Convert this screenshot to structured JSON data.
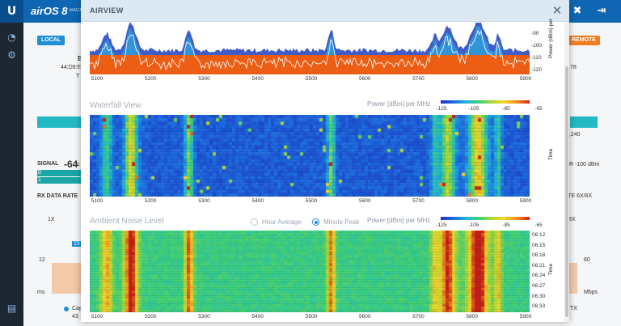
{
  "app": {
    "logo": "U",
    "brand": "airOS 8",
    "brand_sub": "BACK"
  },
  "colors": {
    "topbar": "#0f66b2",
    "sidebar": "#1c2733",
    "local": "#1f8fd6",
    "remote": "#f07c1e",
    "spectrum_fill": "#ff5a00",
    "waterfall_low": "#1c56c9"
  },
  "icons": {
    "logo": "ubiquiti-u-icon",
    "tools": "tools-icon",
    "logout": "logout-icon",
    "dashboard": "gauge-icon",
    "settings": "gears-icon",
    "log": "log-icon",
    "close": "close-icon"
  },
  "background": {
    "local_label": "LOCAL",
    "remote_label": "REMOTE",
    "signal_label": "SIGNAL",
    "signal_value": "-64",
    "signal_unit": "(c",
    "rx_rate_label": "RX DATA RATE",
    "rate_right": "RATE 6X/8X",
    "mode_left": "1X",
    "mode_right": "8X",
    "chain0": "0",
    "chain1": "1",
    "noise_right": "DR -100 dBm",
    "freq_right": "5,240",
    "val_left": "44:D9:E",
    "val_left2": "T",
    "val_right": "78",
    "chart_num_left": "12",
    "chart_num_right": "60",
    "unit_left": "ms",
    "unit_right": "Mbps",
    "bottom_left": "Cap",
    "bottom_left2": "43",
    "bottom_right": "TX",
    "tab_left": "15"
  },
  "modal": {
    "title": "AIRVIEW",
    "spectrum": {
      "y_ticks": [
        "-90",
        "-100",
        "-110",
        "-120"
      ],
      "y_axis_title": "Power (dBm) per",
      "x_ticks": [
        "5100",
        "5200",
        "5300",
        "5400",
        "5500",
        "5600",
        "5700",
        "5800",
        "5900"
      ]
    },
    "waterfall": {
      "title": "Waterfall View",
      "legend_label": "Power [dBm] per MHz",
      "legend_ticks": [
        "-125",
        "-105",
        "-85",
        "-65"
      ],
      "x_ticks": [
        "5100",
        "5200",
        "5300",
        "5400",
        "5500",
        "5600",
        "5700",
        "5800",
        "5900"
      ],
      "y_axis_title": "Time"
    },
    "ambient": {
      "title": "Ambient Noise Level",
      "radio_hour": "Hour Average",
      "radio_minute": "Minute Peak",
      "legend_label": "Power [dBm] per MHz",
      "legend_ticks": [
        "-125",
        "-105",
        "-85",
        "-65"
      ],
      "x_ticks": [
        "5100",
        "5200",
        "5300",
        "5400",
        "5500",
        "5600",
        "5700",
        "5800",
        "5900"
      ],
      "time_ticks": [
        "06:12",
        "06:15",
        "06:18",
        "06:21",
        "06:24",
        "06:27",
        "06:30",
        "06:33"
      ],
      "y_axis_title": "Time"
    }
  }
}
